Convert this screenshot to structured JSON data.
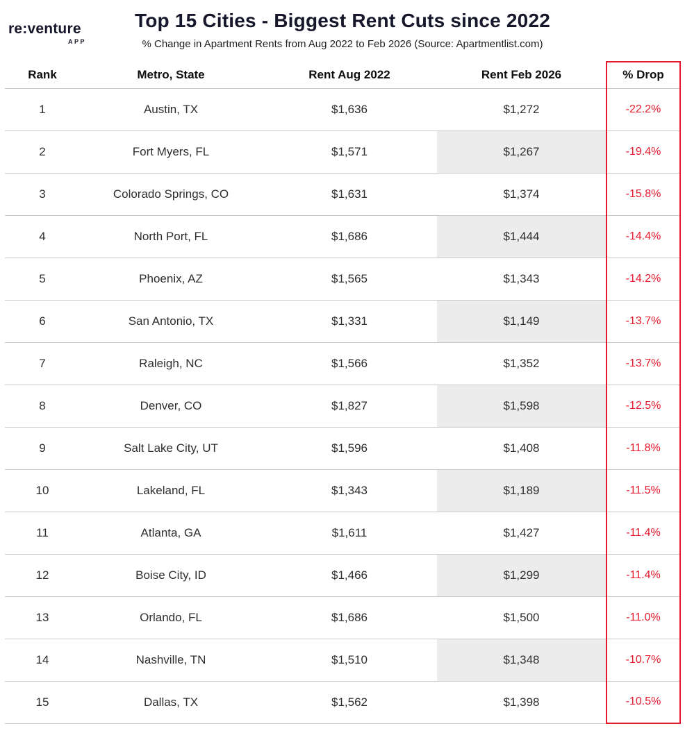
{
  "logo": {
    "brand": "re:venture",
    "sub": "APP"
  },
  "header": {
    "title": "Top 15 Cities - Biggest Rent Cuts since 2022",
    "subtitle": "% Change in Apartment Rents from Aug 2022 to Feb 2026 (Source: Apartmentlist.com)"
  },
  "colors": {
    "accent_red": "#e8192c",
    "title_navy": "#17172c",
    "row_divider": "#c9c9c9",
    "shaded_cell": "#ececec"
  },
  "chart_data": {
    "type": "table",
    "columns": [
      "Rank",
      "Metro, State",
      "Rent Aug 2022",
      "Rent Feb 2026",
      "% Drop"
    ],
    "rows": [
      {
        "rank": "1",
        "metro": "Austin, TX",
        "rent_aug_2022": "$1,636",
        "rent_feb_2026": "$1,272",
        "pct_drop": "-22.2%"
      },
      {
        "rank": "2",
        "metro": "Fort Myers, FL",
        "rent_aug_2022": "$1,571",
        "rent_feb_2026": "$1,267",
        "pct_drop": "-19.4%"
      },
      {
        "rank": "3",
        "metro": "Colorado Springs, CO",
        "rent_aug_2022": "$1,631",
        "rent_feb_2026": "$1,374",
        "pct_drop": "-15.8%"
      },
      {
        "rank": "4",
        "metro": "North Port, FL",
        "rent_aug_2022": "$1,686",
        "rent_feb_2026": "$1,444",
        "pct_drop": "-14.4%"
      },
      {
        "rank": "5",
        "metro": "Phoenix, AZ",
        "rent_aug_2022": "$1,565",
        "rent_feb_2026": "$1,343",
        "pct_drop": "-14.2%"
      },
      {
        "rank": "6",
        "metro": "San Antonio, TX",
        "rent_aug_2022": "$1,331",
        "rent_feb_2026": "$1,149",
        "pct_drop": "-13.7%"
      },
      {
        "rank": "7",
        "metro": "Raleigh, NC",
        "rent_aug_2022": "$1,566",
        "rent_feb_2026": "$1,352",
        "pct_drop": "-13.7%"
      },
      {
        "rank": "8",
        "metro": "Denver, CO",
        "rent_aug_2022": "$1,827",
        "rent_feb_2026": "$1,598",
        "pct_drop": "-12.5%"
      },
      {
        "rank": "9",
        "metro": "Salt Lake City, UT",
        "rent_aug_2022": "$1,596",
        "rent_feb_2026": "$1,408",
        "pct_drop": "-11.8%"
      },
      {
        "rank": "10",
        "metro": "Lakeland, FL",
        "rent_aug_2022": "$1,343",
        "rent_feb_2026": "$1,189",
        "pct_drop": "-11.5%"
      },
      {
        "rank": "11",
        "metro": "Atlanta, GA",
        "rent_aug_2022": "$1,611",
        "rent_feb_2026": "$1,427",
        "pct_drop": "-11.4%"
      },
      {
        "rank": "12",
        "metro": "Boise City, ID",
        "rent_aug_2022": "$1,466",
        "rent_feb_2026": "$1,299",
        "pct_drop": "-11.4%"
      },
      {
        "rank": "13",
        "metro": "Orlando, FL",
        "rent_aug_2022": "$1,686",
        "rent_feb_2026": "$1,500",
        "pct_drop": "-11.0%"
      },
      {
        "rank": "14",
        "metro": "Nashville, TN",
        "rent_aug_2022": "$1,510",
        "rent_feb_2026": "$1,348",
        "pct_drop": "-10.7%"
      },
      {
        "rank": "15",
        "metro": "Dallas, TX",
        "rent_aug_2022": "$1,562",
        "rent_feb_2026": "$1,398",
        "pct_drop": "-10.5%"
      }
    ]
  }
}
